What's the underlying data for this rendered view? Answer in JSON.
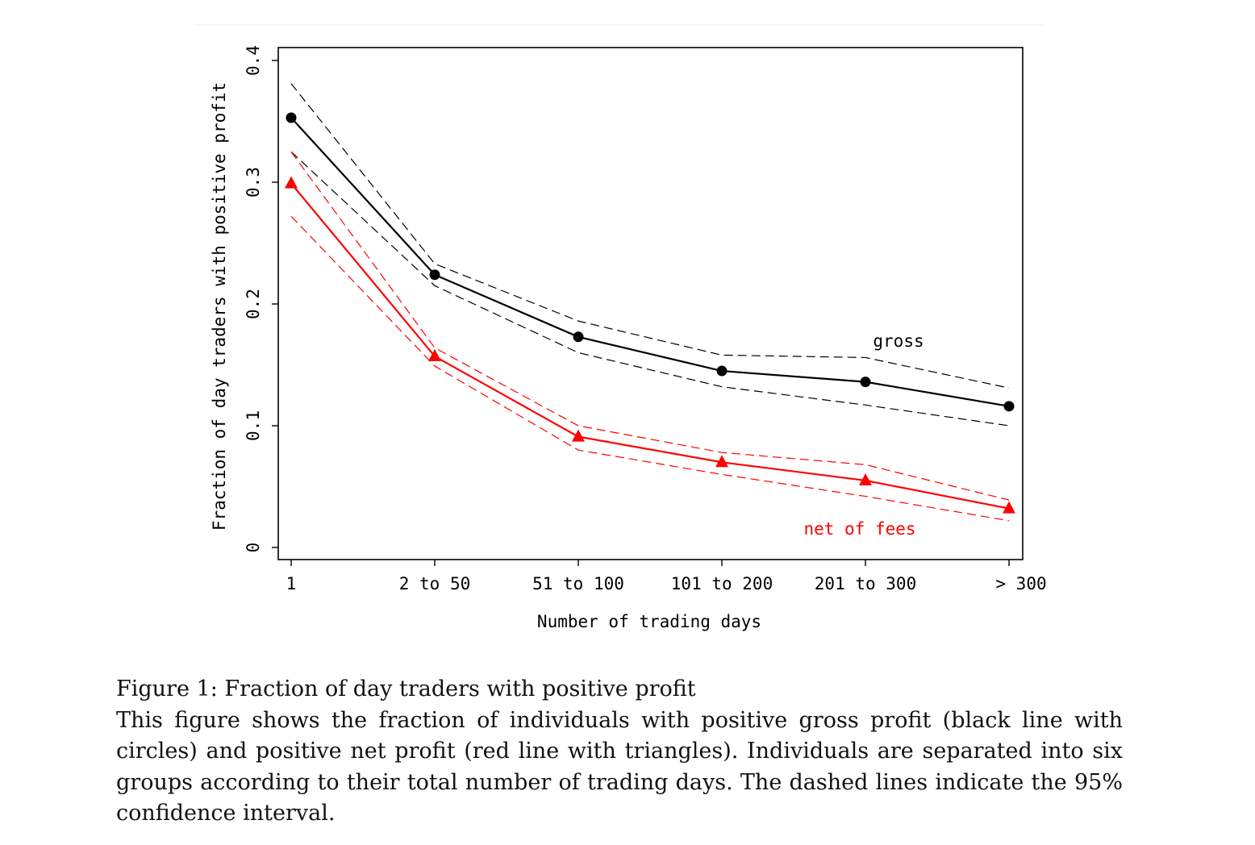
{
  "chart_data": {
    "type": "line",
    "xlabel": "Number of trading days",
    "ylabel": "Fraction of day traders with positive profit",
    "categories": [
      "1",
      "2 to 50",
      "51 to 100",
      "101 to 200",
      "201 to 300",
      "> 300"
    ],
    "ylim": [
      -0.01,
      0.41
    ],
    "yticks": [
      0,
      0.1,
      0.2,
      0.3,
      0.4
    ],
    "ytick_labels": [
      "0",
      "0.1",
      "0.2",
      "0.3",
      "0.4"
    ],
    "grid": false,
    "series": [
      {
        "name": "gross",
        "color": "#000000",
        "marker": "circle",
        "values": [
          0.353,
          0.224,
          0.173,
          0.145,
          0.136,
          0.116
        ],
        "ci_upper": [
          0.381,
          0.233,
          0.186,
          0.158,
          0.156,
          0.131
        ],
        "ci_lower": [
          0.325,
          0.215,
          0.16,
          0.132,
          0.117,
          0.1
        ]
      },
      {
        "name": "net of fees",
        "color": "#ff0000",
        "marker": "triangle",
        "values": [
          0.299,
          0.157,
          0.091,
          0.07,
          0.055,
          0.032
        ],
        "ci_upper": [
          0.325,
          0.164,
          0.1,
          0.078,
          0.068,
          0.039
        ],
        "ci_lower": [
          0.272,
          0.149,
          0.08,
          0.06,
          0.042,
          0.022
        ]
      }
    ]
  },
  "caption": {
    "title": "Figure 1: Fraction of day traders with positive profit",
    "body": "This figure shows the fraction of individuals with positive gross profit (black line with circles) and positive net profit (red line with triangles). Individuals are separated into six groups according to their total number of trading days. The dashed lines indicate the 95% confidence interval."
  }
}
